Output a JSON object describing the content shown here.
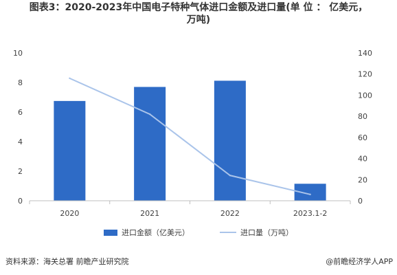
{
  "title_line1": "图表3：2020-2023年中国电子特种气体进口金额及进口量(单 位 ： 亿美元，",
  "title_line2": "万吨)",
  "source": "资料来源：海关总署 前瞻产业研究院",
  "brand": "@前瞻经济学人APP",
  "colors": {
    "bar": "#2e6bc6",
    "line": "#aac4ea"
  },
  "chart_data": {
    "type": "bar",
    "categories": [
      "2020",
      "2021",
      "2022",
      "2023.1-2"
    ],
    "series": [
      {
        "name": "进口金额（亿美元）",
        "type": "bar",
        "axis": "left",
        "values": [
          6.75,
          7.7,
          8.12,
          1.15
        ]
      },
      {
        "name": "进口量（万吨）",
        "type": "line",
        "axis": "right",
        "values": [
          116,
          82,
          24,
          6
        ]
      }
    ],
    "y_left": {
      "min": 0,
      "max": 10,
      "ticks": [
        "0",
        "2",
        "4",
        "6",
        "8",
        "10"
      ]
    },
    "y_right": {
      "min": 0,
      "max": 140,
      "ticks": [
        "0",
        "20",
        "40",
        "60",
        "80",
        "100",
        "120",
        "140"
      ]
    },
    "grid": false,
    "legend_position": "bottom"
  }
}
